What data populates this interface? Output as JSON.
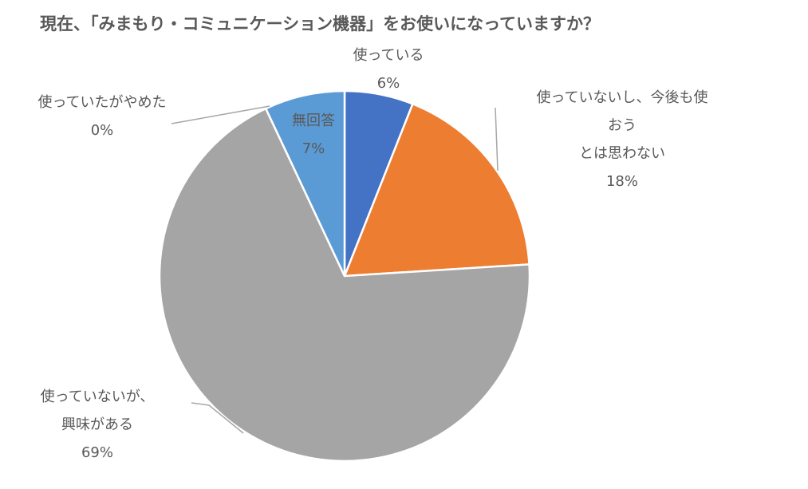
{
  "chart_data": {
    "type": "pie",
    "title": "現在、「みまもり・コミュニケーション機器」をお使いになっていますか？",
    "categories": [
      "使っている",
      "使っていないし、今後も使おう\nとは思わない",
      "使っていないが、\n興味がある",
      "使っていたがやめた",
      "無回答"
    ],
    "values": [
      6,
      18,
      69,
      0,
      7
    ],
    "value_labels": [
      "6%",
      "18%",
      "69%",
      "0%",
      "7%"
    ],
    "colors": [
      "#4472c4",
      "#ed7d31",
      "#a5a5a5",
      "#ffc000",
      "#5b9bd5"
    ]
  }
}
